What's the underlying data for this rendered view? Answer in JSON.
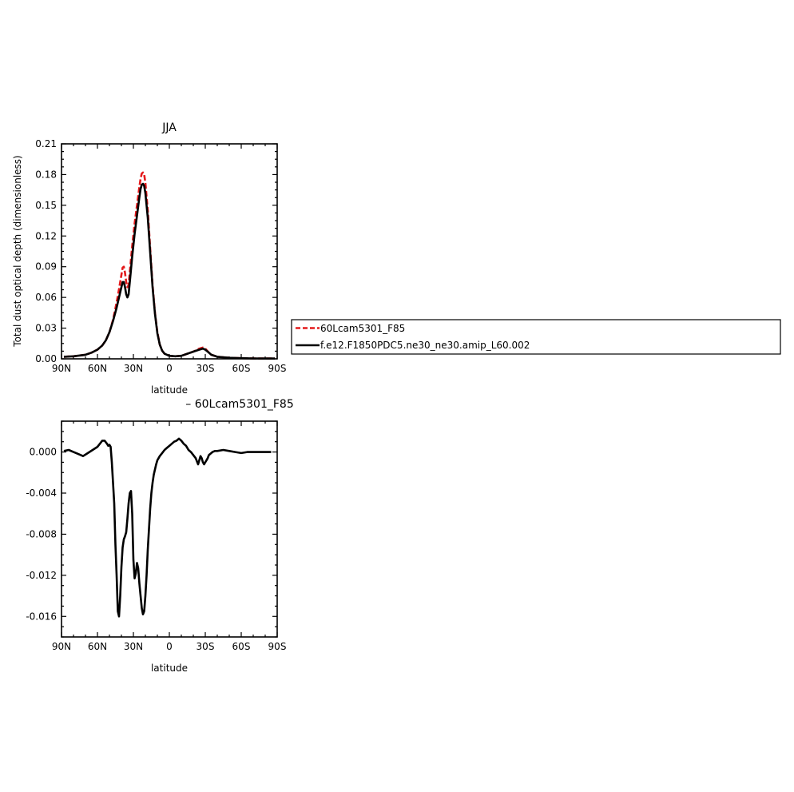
{
  "chart_data": [
    {
      "type": "line",
      "title": "JJA",
      "xlabel": "latitude",
      "ylabel": "Total dust optical depth (dimensionless)",
      "xlim": [
        -90,
        90
      ],
      "ylim": [
        0,
        0.21
      ],
      "x_ticks": [
        -90,
        -60,
        -30,
        0,
        30,
        60,
        90
      ],
      "x_tick_labels": [
        "90N",
        "60N",
        "30N",
        "0",
        "30S",
        "60S",
        "90S"
      ],
      "y_ticks": [
        0,
        0.03,
        0.06,
        0.09,
        0.12,
        0.15,
        0.18,
        0.21
      ],
      "y_tick_labels": [
        "0.00",
        "0.03",
        "0.06",
        "0.09",
        "0.12",
        "0.15",
        "0.18",
        "0.21"
      ],
      "legend_position": "right",
      "series": [
        {
          "name": "60Lcam5301_F85",
          "color": "#e41a1c",
          "dash": "dashed",
          "x": [
            -88,
            -80,
            -70,
            -65,
            -60,
            -56,
            -53,
            -50,
            -47,
            -44,
            -42,
            -40,
            -39,
            -38,
            -37,
            -36,
            -35,
            -34,
            -33,
            -31,
            -29,
            -27,
            -25,
            -24,
            -23,
            -22,
            -21,
            -20,
            -18,
            -16,
            -14,
            -12,
            -10,
            -8,
            -6,
            -4,
            -2,
            0,
            5,
            10,
            15,
            20,
            25,
            28,
            30,
            33,
            35,
            40,
            50,
            60,
            70,
            80,
            88
          ],
          "y": [
            0.002,
            0.0025,
            0.004,
            0.006,
            0.009,
            0.013,
            0.018,
            0.026,
            0.038,
            0.055,
            0.068,
            0.082,
            0.089,
            0.09,
            0.084,
            0.075,
            0.07,
            0.072,
            0.085,
            0.11,
            0.132,
            0.15,
            0.168,
            0.176,
            0.181,
            0.182,
            0.18,
            0.172,
            0.145,
            0.108,
            0.072,
            0.045,
            0.026,
            0.014,
            0.008,
            0.005,
            0.004,
            0.003,
            0.0025,
            0.003,
            0.005,
            0.007,
            0.01,
            0.011,
            0.01,
            0.006,
            0.004,
            0.002,
            0.001,
            0.0006,
            0.0004,
            0.0003,
            0.0003
          ]
        },
        {
          "name": "f.e12.F1850PDC5.ne30_ne30.amip_L60.002",
          "color": "#000000",
          "dash": "solid",
          "x": [
            -88,
            -80,
            -70,
            -65,
            -60,
            -56,
            -53,
            -50,
            -47,
            -44,
            -42,
            -40,
            -39,
            -38,
            -37,
            -36,
            -35,
            -34,
            -33,
            -31,
            -29,
            -27,
            -25,
            -24,
            -23,
            -22,
            -21,
            -20,
            -18,
            -16,
            -14,
            -12,
            -10,
            -8,
            -6,
            -4,
            -2,
            0,
            5,
            10,
            15,
            20,
            25,
            28,
            30,
            33,
            35,
            40,
            50,
            60,
            70,
            80,
            88
          ],
          "y": [
            0.002,
            0.0025,
            0.004,
            0.006,
            0.009,
            0.013,
            0.018,
            0.026,
            0.037,
            0.05,
            0.06,
            0.07,
            0.075,
            0.075,
            0.07,
            0.063,
            0.06,
            0.063,
            0.075,
            0.1,
            0.122,
            0.14,
            0.158,
            0.166,
            0.17,
            0.171,
            0.169,
            0.162,
            0.138,
            0.104,
            0.07,
            0.044,
            0.025,
            0.014,
            0.008,
            0.005,
            0.004,
            0.003,
            0.0025,
            0.003,
            0.005,
            0.007,
            0.009,
            0.01,
            0.009,
            0.006,
            0.004,
            0.002,
            0.001,
            0.0006,
            0.0004,
            0.0003,
            0.0003
          ]
        }
      ]
    },
    {
      "type": "line",
      "title": "– 60Lcam5301_F85",
      "xlabel": "latitude",
      "ylabel": "",
      "xlim": [
        -90,
        90
      ],
      "ylim": [
        -0.018,
        0.003
      ],
      "x_ticks": [
        -90,
        -60,
        -30,
        0,
        30,
        60,
        90
      ],
      "x_tick_labels": [
        "90N",
        "60N",
        "30N",
        "0",
        "30S",
        "60S",
        "90S"
      ],
      "y_ticks": [
        0.0,
        -0.004,
        -0.008,
        -0.012,
        -0.016
      ],
      "y_tick_labels": [
        "0.000",
        "-0.004",
        "-0.008",
        "-0.012",
        "-0.016"
      ],
      "series": [
        {
          "name": "",
          "color": "#000000",
          "dash": "solid",
          "x": [
            -88,
            -84,
            -80,
            -76,
            -72,
            -68,
            -64,
            -60,
            -58,
            -56,
            -54,
            -52,
            -51,
            -50,
            -49,
            -48,
            -47,
            -46,
            -45,
            -44,
            -43,
            -42,
            -41,
            -40,
            -39,
            -38,
            -37,
            -36,
            -35,
            -34,
            -33,
            -32,
            -31,
            -30,
            -29,
            -28,
            -27,
            -26,
            -25,
            -24,
            -23,
            -22,
            -21,
            -20,
            -19,
            -18,
            -17,
            -16,
            -15,
            -14,
            -13,
            -12,
            -11,
            -10,
            -9,
            -8,
            -6,
            -4,
            -2,
            0,
            2,
            4,
            6,
            8,
            10,
            12,
            14,
            15,
            16,
            18,
            20,
            22,
            24,
            25,
            26,
            27,
            28,
            29,
            30,
            31,
            32,
            33,
            34,
            35,
            36,
            38,
            40,
            45,
            50,
            55,
            60,
            65,
            70,
            75,
            80,
            85
          ],
          "y": [
            0.0001,
            0.0002,
            0.0,
            -0.0002,
            -0.0004,
            -0.0001,
            0.0002,
            0.0005,
            0.0008,
            0.0011,
            0.0011,
            0.0008,
            0.0006,
            0.0007,
            0.0005,
            -0.001,
            -0.003,
            -0.005,
            -0.009,
            -0.012,
            -0.0155,
            -0.016,
            -0.014,
            -0.0112,
            -0.0093,
            -0.0085,
            -0.0082,
            -0.0078,
            -0.0065,
            -0.005,
            -0.004,
            -0.0038,
            -0.006,
            -0.0105,
            -0.0123,
            -0.0118,
            -0.0108,
            -0.0113,
            -0.0128,
            -0.014,
            -0.0152,
            -0.0158,
            -0.0155,
            -0.014,
            -0.012,
            -0.0095,
            -0.0075,
            -0.0055,
            -0.004,
            -0.003,
            -0.0022,
            -0.0017,
            -0.0012,
            -0.0008,
            -0.0006,
            -0.0004,
            -0.0001,
            0.0002,
            0.0004,
            0.0006,
            0.0008,
            0.001,
            0.0011,
            0.0013,
            0.0011,
            0.0008,
            0.0006,
            0.0004,
            0.0002,
            0.0,
            -0.0003,
            -0.0006,
            -0.0012,
            -0.0008,
            -0.0004,
            -0.0006,
            -0.001,
            -0.0012,
            -0.001,
            -0.0008,
            -0.0006,
            -0.0003,
            -0.0002,
            -0.0001,
            0.0,
            0.0001,
            0.0001,
            0.0002,
            0.0001,
            0.0,
            -0.0001,
            0.0,
            0.0,
            0.0,
            0.0,
            0.0
          ]
        }
      ]
    }
  ]
}
